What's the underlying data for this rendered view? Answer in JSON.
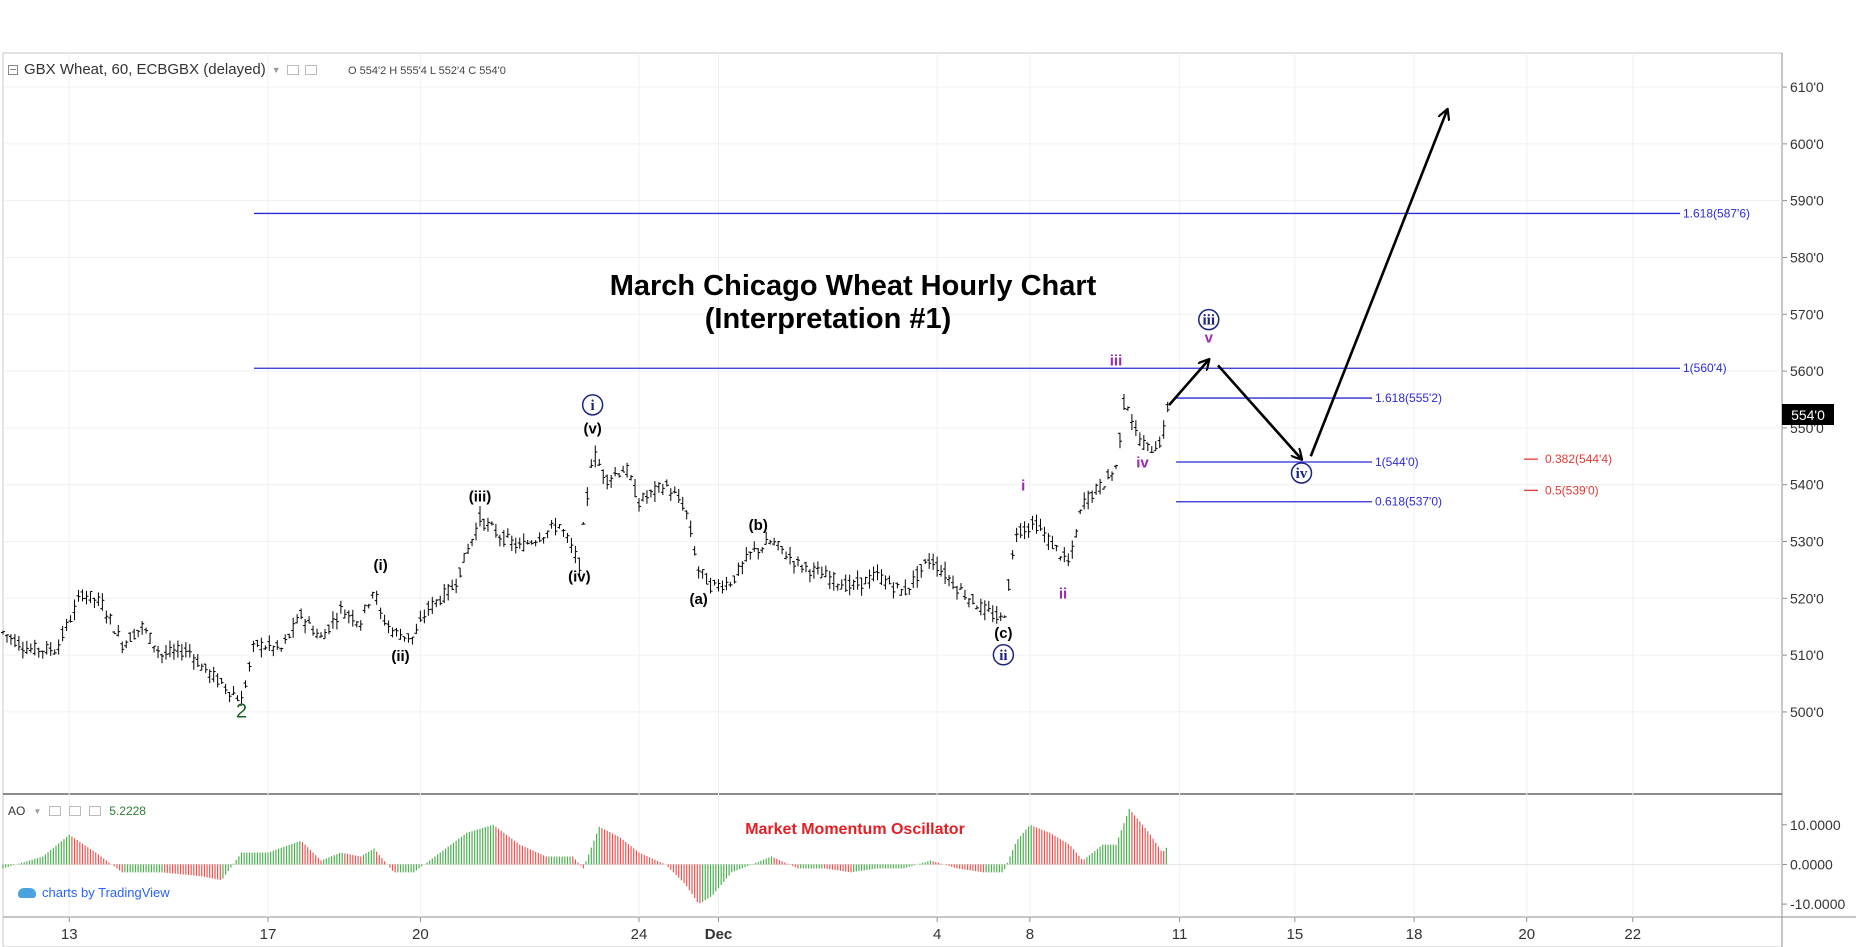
{
  "symbol": {
    "title": "GBX Wheat, 60, ECBGBX (delayed)",
    "ohlc": "O 554'2  H 555'4  L 552'4  C 554'0"
  },
  "indicator": {
    "name": "AO",
    "value": "5.2228",
    "annotation": "Market Momentum Oscillator",
    "axis_labels": [
      "10.0000",
      "0.0000",
      "-10.0000"
    ]
  },
  "branding": "charts by TradingView",
  "colors": {
    "price_bars": "#000000",
    "fib_lines": "#2b2bd6",
    "fib_alt": "#e53935",
    "wave_minor": "#9c27b0",
    "wave_circle": "#1a237e",
    "ao_up": "#4caf50",
    "ao_down": "#ef5350",
    "last_price_bg": "#000000"
  },
  "chart_data": {
    "type": "line",
    "title": "March Chicago Wheat Hourly Chart",
    "subtitle": "(Interpretation #1)",
    "ylim": [
      494,
      613
    ],
    "y_ticks": [
      "610'0",
      "600'0",
      "590'0",
      "580'0",
      "570'0",
      "560'0",
      "550'0",
      "540'0",
      "530'0",
      "520'0",
      "510'0",
      "500'0"
    ],
    "x_tick_labels": [
      "13",
      "17",
      "20",
      "24",
      "Dec",
      "4",
      "8",
      "11",
      "15",
      "18",
      "20",
      "22"
    ],
    "last_price": "554'0",
    "price_path": [
      {
        "t": 0,
        "p": 514
      },
      {
        "t": 2,
        "p": 511
      },
      {
        "t": 4,
        "p": 511
      },
      {
        "t": 6,
        "p": 521
      },
      {
        "t": 7.5,
        "p": 519
      },
      {
        "t": 9,
        "p": 512
      },
      {
        "t": 10.5,
        "p": 515
      },
      {
        "t": 12,
        "p": 510
      },
      {
        "t": 14,
        "p": 511
      },
      {
        "t": 15,
        "p": 508
      },
      {
        "t": 17,
        "p": 504
      },
      {
        "t": 18,
        "p": 502
      },
      {
        "t": 19,
        "p": 512
      },
      {
        "t": 21,
        "p": 511
      },
      {
        "t": 22.5,
        "p": 517
      },
      {
        "t": 24,
        "p": 513
      },
      {
        "t": 25.5,
        "p": 518
      },
      {
        "t": 27,
        "p": 516
      },
      {
        "t": 28,
        "p": 522
      },
      {
        "t": 28.5,
        "p": 517
      },
      {
        "t": 29.5,
        "p": 514
      },
      {
        "t": 31,
        "p": 513
      },
      {
        "t": 32,
        "p": 518
      },
      {
        "t": 34,
        "p": 522
      },
      {
        "t": 35,
        "p": 528
      },
      {
        "t": 36,
        "p": 534
      },
      {
        "t": 37.5,
        "p": 531
      },
      {
        "t": 39,
        "p": 529
      },
      {
        "t": 40.5,
        "p": 531
      },
      {
        "t": 42,
        "p": 533
      },
      {
        "t": 43.5,
        "p": 526
      },
      {
        "t": 44.5,
        "p": 546
      },
      {
        "t": 45.5,
        "p": 541
      },
      {
        "t": 47,
        "p": 543
      },
      {
        "t": 48,
        "p": 537
      },
      {
        "t": 50,
        "p": 540
      },
      {
        "t": 51.5,
        "p": 536
      },
      {
        "t": 52.5,
        "p": 525
      },
      {
        "t": 53.5,
        "p": 522
      },
      {
        "t": 55,
        "p": 523
      },
      {
        "t": 56.5,
        "p": 528
      },
      {
        "t": 58,
        "p": 530
      },
      {
        "t": 60,
        "p": 526
      },
      {
        "t": 62,
        "p": 524
      },
      {
        "t": 64,
        "p": 522
      },
      {
        "t": 66,
        "p": 524
      },
      {
        "t": 68,
        "p": 521
      },
      {
        "t": 70,
        "p": 527
      },
      {
        "t": 72,
        "p": 522
      },
      {
        "t": 74,
        "p": 518
      },
      {
        "t": 75.5,
        "p": 516
      },
      {
        "t": 76.5,
        "p": 532
      },
      {
        "t": 78,
        "p": 533
      },
      {
        "t": 79,
        "p": 530
      },
      {
        "t": 80.5,
        "p": 526
      },
      {
        "t": 81.5,
        "p": 537
      },
      {
        "t": 83,
        "p": 540
      },
      {
        "t": 84,
        "p": 543
      },
      {
        "t": 84.7,
        "p": 556
      },
      {
        "t": 85.5,
        "p": 549
      },
      {
        "t": 86.5,
        "p": 546
      },
      {
        "t": 87.5,
        "p": 548
      },
      {
        "t": 88,
        "p": 555
      }
    ],
    "fib_levels": [
      {
        "label": "1.618(587'6)",
        "value": 587.75,
        "color": "#2b2bd6"
      },
      {
        "label": "1(560'4)",
        "value": 560.5,
        "color": "#2b2bd6"
      },
      {
        "label": "1.618(555'2)",
        "value": 555.25,
        "color": "#2b2bd6"
      },
      {
        "label": "1(544'0)",
        "value": 544,
        "color": "#2b2bd6"
      },
      {
        "label": "0.618(537'0)",
        "value": 537,
        "color": "#2b2bd6"
      },
      {
        "label": "0.382(544'4)",
        "value": 544.5,
        "color": "#e53935"
      },
      {
        "label": "0.5(539'0)",
        "value": 539,
        "color": "#e53935"
      }
    ],
    "wave_labels": [
      {
        "text": "2",
        "t": 18,
        "p": 499,
        "style": "green"
      },
      {
        "text": "(i)",
        "t": 28.5,
        "p": 525,
        "style": "black"
      },
      {
        "text": "(ii)",
        "t": 30,
        "p": 509,
        "style": "black"
      },
      {
        "text": "(iii)",
        "t": 36,
        "p": 537,
        "style": "black"
      },
      {
        "text": "(iv)",
        "t": 43.5,
        "p": 523,
        "style": "black"
      },
      {
        "text": "(v)",
        "t": 44.5,
        "p": 549,
        "style": "black"
      },
      {
        "text": "i",
        "t": 44.5,
        "p": 553,
        "style": "circle"
      },
      {
        "text": "(a)",
        "t": 52.5,
        "p": 519,
        "style": "black"
      },
      {
        "text": "(b)",
        "t": 57,
        "p": 532,
        "style": "black"
      },
      {
        "text": "(c)",
        "t": 75.5,
        "p": 513,
        "style": "black"
      },
      {
        "text": "ii",
        "t": 75.5,
        "p": 509,
        "style": "circle"
      },
      {
        "text": "i",
        "t": 77,
        "p": 539,
        "style": "purple"
      },
      {
        "text": "ii",
        "t": 80,
        "p": 520,
        "style": "purple"
      },
      {
        "text": "iii",
        "t": 84,
        "p": 561,
        "style": "purple"
      },
      {
        "text": "iv",
        "t": 86,
        "p": 543,
        "style": "purple"
      },
      {
        "text": "v",
        "t": 91,
        "p": 565,
        "style": "purple"
      },
      {
        "text": "iii",
        "t": 91,
        "p": 568,
        "style": "circle"
      },
      {
        "text": "iv",
        "t": 98,
        "p": 541,
        "style": "circle"
      }
    ],
    "projection_arrows": [
      {
        "from": {
          "t": 88,
          "p": 554
        },
        "to": {
          "t": 91,
          "p": 562
        }
      },
      {
        "from": {
          "t": 91.7,
          "p": 561
        },
        "to": {
          "t": 98,
          "p": 544.5
        }
      },
      {
        "from": {
          "t": 98.7,
          "p": 545
        },
        "to": {
          "t": 109,
          "p": 606
        }
      }
    ],
    "ao_ylim": [
      -12,
      15
    ],
    "ao_series": [
      {
        "t": 0,
        "v": -1
      },
      {
        "t": 3,
        "v": 2
      },
      {
        "t": 5,
        "v": 7.5
      },
      {
        "t": 7,
        "v": 3
      },
      {
        "t": 9,
        "v": -2
      },
      {
        "t": 12,
        "v": -2
      },
      {
        "t": 15,
        "v": -3
      },
      {
        "t": 16.5,
        "v": -4
      },
      {
        "t": 18,
        "v": 3
      },
      {
        "t": 20,
        "v": 3
      },
      {
        "t": 22.5,
        "v": 6
      },
      {
        "t": 24,
        "v": 1
      },
      {
        "t": 25.5,
        "v": 3
      },
      {
        "t": 27,
        "v": 2
      },
      {
        "t": 28,
        "v": 4
      },
      {
        "t": 29.5,
        "v": -2
      },
      {
        "t": 31,
        "v": -2
      },
      {
        "t": 33,
        "v": 3
      },
      {
        "t": 35,
        "v": 8
      },
      {
        "t": 37,
        "v": 10
      },
      {
        "t": 39,
        "v": 5
      },
      {
        "t": 41,
        "v": 2
      },
      {
        "t": 43,
        "v": 2
      },
      {
        "t": 43.8,
        "v": -1
      },
      {
        "t": 45,
        "v": 9.5
      },
      {
        "t": 46.5,
        "v": 7
      },
      {
        "t": 48,
        "v": 3
      },
      {
        "t": 50,
        "v": 0
      },
      {
        "t": 51.5,
        "v": -5
      },
      {
        "t": 52.5,
        "v": -10
      },
      {
        "t": 53.5,
        "v": -8
      },
      {
        "t": 55,
        "v": -2
      },
      {
        "t": 56.5,
        "v": 0
      },
      {
        "t": 58,
        "v": 2
      },
      {
        "t": 60,
        "v": -1
      },
      {
        "t": 62,
        "v": -1
      },
      {
        "t": 64,
        "v": -2
      },
      {
        "t": 66,
        "v": -1
      },
      {
        "t": 68,
        "v": -1
      },
      {
        "t": 70,
        "v": 1
      },
      {
        "t": 72,
        "v": -1
      },
      {
        "t": 74,
        "v": -2
      },
      {
        "t": 75.5,
        "v": -2
      },
      {
        "t": 76.5,
        "v": 6
      },
      {
        "t": 77.5,
        "v": 10
      },
      {
        "t": 79,
        "v": 8
      },
      {
        "t": 80.5,
        "v": 5
      },
      {
        "t": 81.5,
        "v": 1
      },
      {
        "t": 83,
        "v": 5
      },
      {
        "t": 84,
        "v": 5
      },
      {
        "t": 85,
        "v": 14
      },
      {
        "t": 86.5,
        "v": 8
      },
      {
        "t": 87.5,
        "v": 3
      },
      {
        "t": 88,
        "v": 5
      }
    ]
  }
}
